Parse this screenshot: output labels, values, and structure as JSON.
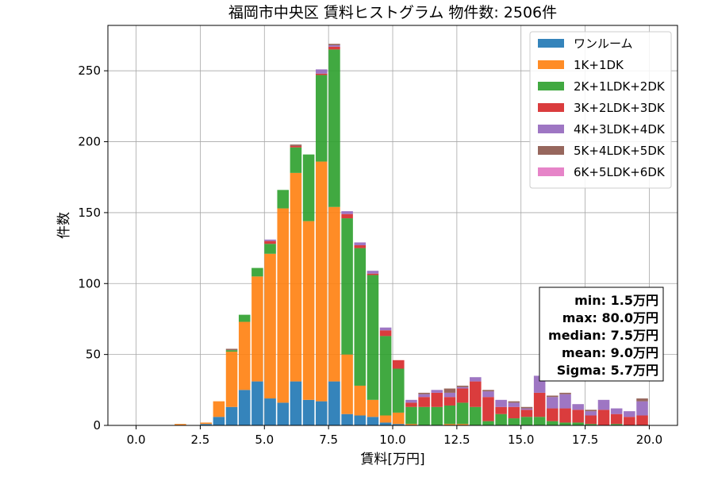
{
  "chart_data": {
    "type": "bar",
    "stacked": true,
    "title": "福岡市中央区 賃料ヒストグラム 物件数: 2506件",
    "xlabel": "賃料[万円]",
    "ylabel": "件数",
    "xlim": [
      -1.1,
      21.1
    ],
    "ylim": [
      0,
      282
    ],
    "xticks": [
      0.0,
      2.5,
      5.0,
      7.5,
      10.0,
      12.5,
      15.0,
      17.5,
      20.0
    ],
    "xtick_labels": [
      "0.0",
      "2.5",
      "5.0",
      "7.5",
      "10.0",
      "12.5",
      "15.0",
      "17.5",
      "20.0"
    ],
    "yticks": [
      0,
      50,
      100,
      150,
      200,
      250
    ],
    "ytick_labels": [
      "0",
      "50",
      "100",
      "150",
      "200",
      "250"
    ],
    "grid": true,
    "legend_position": "top-right",
    "bin_width": 0.5,
    "bin_starts": [
      1.5,
      2.0,
      2.5,
      3.0,
      3.5,
      4.0,
      4.5,
      5.0,
      5.5,
      6.0,
      6.5,
      7.0,
      7.5,
      8.0,
      8.5,
      9.0,
      9.5,
      10.0,
      10.5,
      11.0,
      11.5,
      12.0,
      12.5,
      13.0,
      13.5,
      14.0,
      14.5,
      15.0,
      15.5,
      16.0,
      16.5,
      17.0,
      17.5,
      18.0,
      18.5,
      19.0,
      19.5
    ],
    "series": [
      {
        "name": "ワンルーム",
        "color": "#1f77b4",
        "values": [
          0,
          0,
          1,
          6,
          13,
          25,
          31,
          19,
          16,
          31,
          18,
          17,
          31,
          8,
          7,
          6,
          2,
          1,
          0,
          0,
          0,
          0,
          0,
          0,
          0,
          0,
          0,
          0,
          0,
          0,
          0,
          0,
          0,
          0,
          0,
          0,
          0
        ]
      },
      {
        "name": "1K+1DK",
        "color": "#ff7f0e",
        "values": [
          1,
          0,
          1,
          11,
          39,
          48,
          74,
          102,
          137,
          147,
          126,
          169,
          123,
          42,
          21,
          12,
          5,
          8,
          1,
          0,
          0,
          1,
          1,
          0,
          0,
          0,
          0,
          0,
          0,
          0,
          0,
          0,
          0,
          0,
          0,
          0,
          0
        ]
      },
      {
        "name": "2K+1LDK+2DK",
        "color": "#2ca02c",
        "values": [
          0,
          0,
          0,
          0,
          1,
          5,
          6,
          7,
          13,
          18,
          47,
          61,
          111,
          96,
          97,
          88,
          56,
          31,
          12,
          13,
          13,
          13,
          15,
          13,
          3,
          8,
          5,
          6,
          6,
          3,
          2,
          2,
          1,
          0,
          1,
          0,
          0
        ]
      },
      {
        "name": "3K+2LDK+3DK",
        "color": "#d62728",
        "values": [
          0,
          0,
          0,
          0,
          0,
          0,
          0,
          2,
          0,
          1,
          0,
          1,
          2,
          3,
          2,
          1,
          4,
          6,
          3,
          7,
          10,
          6,
          10,
          18,
          17,
          5,
          8,
          5,
          17,
          9,
          10,
          9,
          6,
          11,
          7,
          6,
          7
        ]
      },
      {
        "name": "4K+3LDK+4DK",
        "color": "#9467bd",
        "values": [
          0,
          0,
          0,
          0,
          0,
          0,
          0,
          1,
          0,
          0,
          0,
          3,
          1,
          2,
          2,
          2,
          2,
          0,
          2,
          2,
          2,
          3,
          1,
          3,
          4,
          5,
          3,
          1,
          12,
          8,
          10,
          4,
          3,
          7,
          4,
          4,
          10
        ]
      },
      {
        "name": "5K+4LDK+5DK",
        "color": "#8c564b",
        "values": [
          0,
          0,
          0,
          0,
          1,
          0,
          0,
          0,
          0,
          1,
          0,
          0,
          1,
          0,
          0,
          0,
          0,
          0,
          0,
          1,
          0,
          3,
          1,
          0,
          1,
          0,
          1,
          1,
          0,
          1,
          1,
          0,
          1,
          0,
          0,
          0,
          2
        ]
      },
      {
        "name": "6K+5LDK+6DK",
        "color": "#e377c2",
        "values": [
          0,
          0,
          0,
          0,
          0,
          0,
          0,
          0,
          0,
          0,
          0,
          0,
          0,
          0,
          0,
          0,
          0,
          0,
          0,
          0,
          0,
          0,
          0,
          0,
          0,
          0,
          0,
          0,
          0,
          0,
          0,
          0,
          0,
          0,
          0,
          0,
          0
        ]
      }
    ],
    "stats": [
      "min: 1.5万円",
      "max: 80.0万円",
      "median: 7.5万円",
      "mean: 9.0万円",
      "Sigma: 5.7万円"
    ]
  }
}
